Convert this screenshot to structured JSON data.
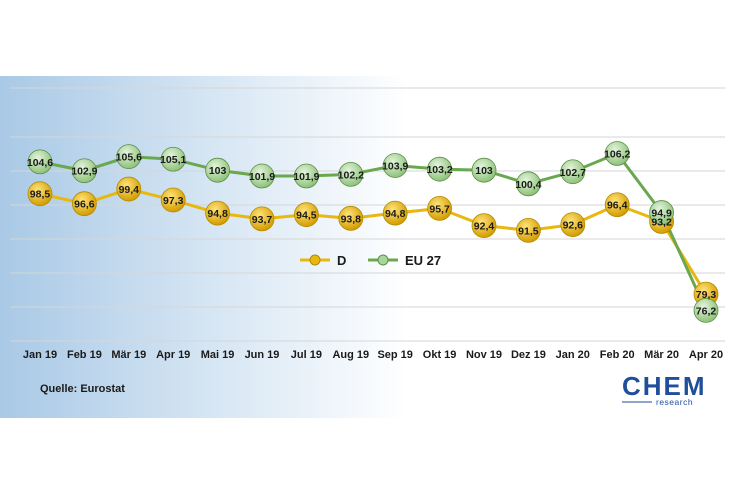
{
  "chart_data": {
    "type": "line",
    "categories": [
      "Jan 19",
      "Feb 19",
      "Mär 19",
      "Apr 19",
      "Mai 19",
      "Jun 19",
      "Jul 19",
      "Aug 19",
      "Sep 19",
      "Okt 19",
      "Nov 19",
      "Dez 19",
      "Jan 20",
      "Feb 20",
      "Mär 20",
      "Apr 20"
    ],
    "series": [
      {
        "name": "D",
        "color": "#e8b80e",
        "values": [
          98.5,
          96.6,
          99.4,
          97.3,
          94.8,
          93.7,
          94.5,
          93.8,
          94.8,
          95.7,
          92.4,
          91.5,
          92.6,
          96.4,
          93.2,
          79.3
        ],
        "labels": [
          "98,5",
          "96,6",
          "99,4",
          "97,3",
          "94,8",
          "93,7",
          "94,5",
          "93,8",
          "94,8",
          "95,7",
          "92,4",
          "91,5",
          "92,6",
          "96,4",
          "93,2",
          "79,3"
        ]
      },
      {
        "name": "EU 27",
        "color": "#6aa84f",
        "values": [
          104.6,
          102.9,
          105.6,
          105.1,
          103,
          101.9,
          101.9,
          102.2,
          103.9,
          103.2,
          103,
          100.4,
          102.7,
          106.2,
          94.9,
          76.2
        ],
        "labels": [
          "104,6",
          "102,9",
          "105,6",
          "105,1",
          "103",
          "101,9",
          "101,9",
          "102,2",
          "103,9",
          "103,2",
          "103",
          "100,4",
          "102,7",
          "106,2",
          "94,9",
          "76,2"
        ]
      }
    ],
    "legend_position": "center",
    "grid": true
  },
  "source": "Quelle: Eurostat",
  "logo": {
    "main": "CHEM",
    "sub": "research",
    "color": "#1f4e9a"
  }
}
